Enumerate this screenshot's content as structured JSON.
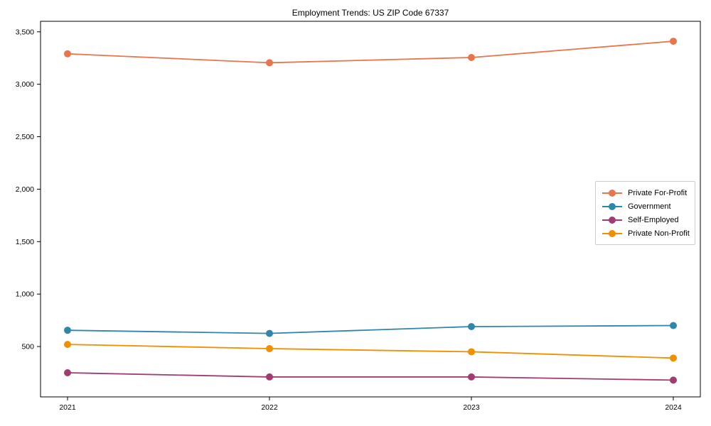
{
  "title": "Employment Trends: US ZIP Code 67337",
  "chart_data": {
    "type": "line",
    "title": "Employment Trends: US ZIP Code 67337",
    "categories": [
      "2021",
      "2022",
      "2023",
      "2024"
    ],
    "series": [
      {
        "name": "Private For-Profit",
        "color": "#E8764B",
        "values": [
          3290,
          3205,
          3255,
          3410
        ]
      },
      {
        "name": "Government",
        "color": "#2E86AB",
        "values": [
          655,
          625,
          690,
          700
        ]
      },
      {
        "name": "Self-Employed",
        "color": "#A23B72",
        "values": [
          250,
          210,
          210,
          180
        ]
      },
      {
        "name": "Private Non-Profit",
        "color": "#F18F01",
        "values": [
          520,
          480,
          450,
          390
        ]
      }
    ],
    "xlabel": "",
    "ylabel": "",
    "ylim": [
      20,
      3600
    ],
    "yticks": [
      500,
      1000,
      1500,
      2000,
      2500,
      3000,
      3500
    ],
    "ytick_labels": [
      "500",
      "1,000",
      "1,500",
      "2,000",
      "2,500",
      "3,000",
      "3,500"
    ],
    "grid": false,
    "marker": "circle",
    "legend": {
      "position": "center-right",
      "entries": [
        "Private For-Profit",
        "Government",
        "Self-Employed",
        "Private Non-Profit"
      ]
    },
    "axis_color": "#000000"
  }
}
